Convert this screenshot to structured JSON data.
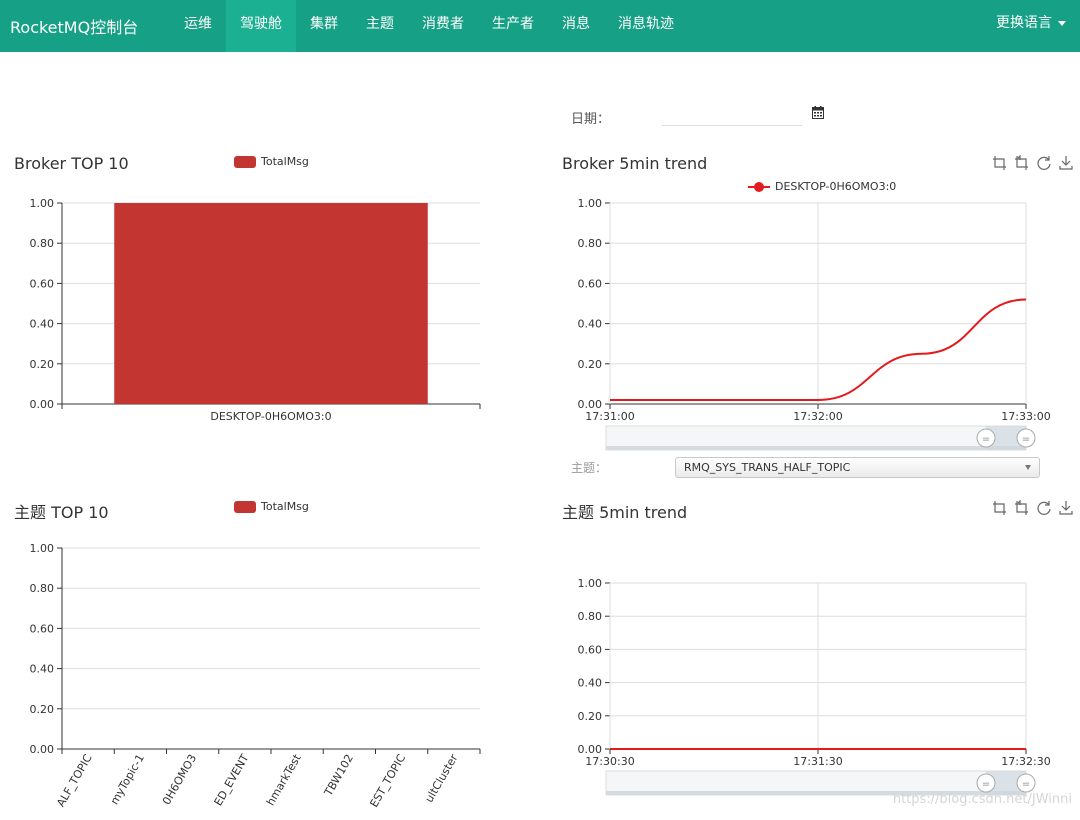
{
  "navbar": {
    "brand": "RocketMQ控制台",
    "items": [
      {
        "label": "运维",
        "active": false
      },
      {
        "label": "驾驶舱",
        "active": true
      },
      {
        "label": "集群",
        "active": false
      },
      {
        "label": "主题",
        "active": false
      },
      {
        "label": "消费者",
        "active": false
      },
      {
        "label": "生产者",
        "active": false
      },
      {
        "label": "消息",
        "active": false
      },
      {
        "label": "消息轨迹",
        "active": false
      }
    ],
    "language": "更换语言"
  },
  "date_filter": {
    "label": "日期：",
    "value": ""
  },
  "topic_filter": {
    "label": "主题：",
    "selected": "RMQ_SYS_TRANS_HALF_TOPIC"
  },
  "watermark": "https://blog.csdn.net/JWinni",
  "colors": {
    "nav_bg": "#16a085",
    "nav_active": "#1bb091",
    "bar": "#c23531",
    "line": "#e41a1c"
  },
  "icons": {
    "toolbox": [
      "zoom-icon",
      "zoom-reset-icon",
      "restore-icon",
      "save-image-icon"
    ],
    "calendar": "calendar-icon"
  },
  "chart_data": [
    {
      "id": "broker_top10",
      "type": "bar",
      "title": "Broker TOP 10",
      "legend": [
        "TotalMsg"
      ],
      "categories": [
        "DESKTOP-0H6OMO3:0"
      ],
      "series": [
        {
          "name": "TotalMsg",
          "values": [
            1.0
          ]
        }
      ],
      "ylim": [
        0,
        1
      ],
      "yticks": [
        "0.00",
        "0.20",
        "0.40",
        "0.60",
        "0.80",
        "1.00"
      ],
      "grid": true
    },
    {
      "id": "broker_5min_trend",
      "type": "line",
      "title": "Broker 5min trend",
      "legend": [
        "DESKTOP-0H6OMO3:0"
      ],
      "x": [
        "17:31:00",
        "17:31:30",
        "17:32:00",
        "17:32:30",
        "17:33:00"
      ],
      "xticks": [
        "17:31:00",
        "17:32:00",
        "17:33:00"
      ],
      "series": [
        {
          "name": "DESKTOP-0H6OMO3:0",
          "values": [
            0.02,
            0.02,
            0.02,
            0.25,
            0.52
          ]
        }
      ],
      "ylim": [
        0,
        1
      ],
      "yticks": [
        "0.00",
        "0.20",
        "0.40",
        "0.60",
        "0.80",
        "1.00"
      ],
      "grid": true,
      "datazoom": true
    },
    {
      "id": "topic_top10",
      "type": "bar",
      "title": "主题 TOP 10",
      "legend": [
        "TotalMsg"
      ],
      "categories": [
        "ALF_TOPIC",
        "myTopic-1",
        "0H6OMO3",
        "ED_EVENT",
        "hmarkTest",
        "TBW102",
        "EST_TOPIC",
        "ultCluster"
      ],
      "series": [
        {
          "name": "TotalMsg",
          "values": [
            0,
            0,
            0,
            0,
            0,
            0,
            0,
            0
          ]
        }
      ],
      "ylim": [
        0,
        1
      ],
      "yticks": [
        "0.00",
        "0.20",
        "0.40",
        "0.60",
        "0.80",
        "1.00"
      ],
      "grid": true
    },
    {
      "id": "topic_5min_trend",
      "type": "line",
      "title": "主题 5min trend",
      "x": [
        "17:30:30",
        "17:31:00",
        "17:31:30",
        "17:32:00",
        "17:32:30"
      ],
      "xticks": [
        "17:30:30",
        "17:31:30",
        "17:32:30"
      ],
      "series": [
        {
          "values": [
            0,
            0,
            0,
            0,
            0
          ]
        }
      ],
      "ylim": [
        0,
        1
      ],
      "yticks": [
        "0.00",
        "0.20",
        "0.40",
        "0.60",
        "0.80",
        "1.00"
      ],
      "grid": true,
      "datazoom": true
    }
  ]
}
